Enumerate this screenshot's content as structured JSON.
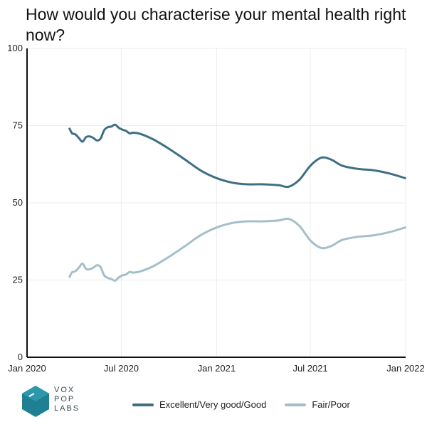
{
  "title": "How would you characterise your mental health right now?",
  "logo": {
    "lines": [
      "VOX",
      "POP",
      "LABS"
    ]
  },
  "chart_data": {
    "type": "line",
    "title": "How would you characterise your mental health right now?",
    "xlabel": "",
    "ylabel": "",
    "ylim": [
      0,
      100
    ],
    "yticks": [
      0,
      25,
      50,
      75,
      100
    ],
    "xlim": [
      "2020-01-01",
      "2022-01-01"
    ],
    "xticks": [
      {
        "label": "Jan 2020",
        "date": "2020-01-01"
      },
      {
        "label": "Jul 2020",
        "date": "2020-07-01"
      },
      {
        "label": "Jan 2021",
        "date": "2021-01-01"
      },
      {
        "label": "Jul 2021",
        "date": "2021-07-01"
      },
      {
        "label": "Jan 2022",
        "date": "2022-01-01"
      }
    ],
    "grid": true,
    "legend_position": "bottom",
    "series": [
      {
        "name": "Excellent/Very good/Good",
        "color": "#3d6f85",
        "points": [
          [
            "2020-03-23",
            74
          ],
          [
            "2020-03-28",
            72.5
          ],
          [
            "2020-04-03",
            72.2
          ],
          [
            "2020-04-10",
            71
          ],
          [
            "2020-04-17",
            69.8
          ],
          [
            "2020-04-24",
            71.3
          ],
          [
            "2020-05-01",
            71.5
          ],
          [
            "2020-05-08",
            71
          ],
          [
            "2020-05-15",
            70.2
          ],
          [
            "2020-05-22",
            70.8
          ],
          [
            "2020-05-29",
            73.5
          ],
          [
            "2020-06-05",
            74.5
          ],
          [
            "2020-06-12",
            74.7
          ],
          [
            "2020-06-19",
            75.3
          ],
          [
            "2020-06-26",
            74.3
          ],
          [
            "2020-07-03",
            73.7
          ],
          [
            "2020-07-10",
            73.3
          ],
          [
            "2020-07-17",
            72.5
          ],
          [
            "2020-07-24",
            72.7
          ],
          [
            "2020-08-07",
            72.3
          ],
          [
            "2020-09-01",
            70.5
          ],
          [
            "2020-10-01",
            67.5
          ],
          [
            "2020-11-01",
            64
          ],
          [
            "2020-12-01",
            60.5
          ],
          [
            "2021-01-01",
            58
          ],
          [
            "2021-02-01",
            56.5
          ],
          [
            "2021-03-01",
            56
          ],
          [
            "2021-04-01",
            56
          ],
          [
            "2021-05-01",
            55.7
          ],
          [
            "2021-05-20",
            55.2
          ],
          [
            "2021-06-10",
            57.5
          ],
          [
            "2021-07-01",
            62
          ],
          [
            "2021-07-22",
            64.6
          ],
          [
            "2021-08-10",
            64
          ],
          [
            "2021-09-01",
            62
          ],
          [
            "2021-10-01",
            61
          ],
          [
            "2021-11-01",
            60.5
          ],
          [
            "2021-12-01",
            59.5
          ],
          [
            "2021-12-31",
            58
          ]
        ]
      },
      {
        "name": "Fair/Poor",
        "color": "#a3bfca",
        "points": [
          [
            "2020-03-23",
            26
          ],
          [
            "2020-03-28",
            27.5
          ],
          [
            "2020-04-03",
            27.8
          ],
          [
            "2020-04-10",
            29
          ],
          [
            "2020-04-17",
            30.3
          ],
          [
            "2020-04-24",
            28.6
          ],
          [
            "2020-05-01",
            28.5
          ],
          [
            "2020-05-08",
            29
          ],
          [
            "2020-05-15",
            29.8
          ],
          [
            "2020-05-22",
            29.2
          ],
          [
            "2020-05-29",
            26.5
          ],
          [
            "2020-06-05",
            25.7
          ],
          [
            "2020-06-12",
            25.3
          ],
          [
            "2020-06-19",
            24.8
          ],
          [
            "2020-06-26",
            25.8
          ],
          [
            "2020-07-03",
            26.5
          ],
          [
            "2020-07-10",
            26.8
          ],
          [
            "2020-07-17",
            27.6
          ],
          [
            "2020-07-24",
            27.4
          ],
          [
            "2020-08-07",
            27.8
          ],
          [
            "2020-09-01",
            29.5
          ],
          [
            "2020-10-01",
            32.5
          ],
          [
            "2020-11-01",
            36
          ],
          [
            "2020-12-01",
            39.5
          ],
          [
            "2021-01-01",
            42
          ],
          [
            "2021-02-01",
            43.5
          ],
          [
            "2021-03-01",
            44
          ],
          [
            "2021-04-01",
            44
          ],
          [
            "2021-05-01",
            44.3
          ],
          [
            "2021-05-20",
            44.8
          ],
          [
            "2021-06-10",
            42.5
          ],
          [
            "2021-07-01",
            37.8
          ],
          [
            "2021-07-22",
            35.4
          ],
          [
            "2021-08-10",
            36
          ],
          [
            "2021-09-01",
            38
          ],
          [
            "2021-10-01",
            39
          ],
          [
            "2021-11-01",
            39.5
          ],
          [
            "2021-12-01",
            40.5
          ],
          [
            "2021-12-31",
            42
          ]
        ]
      }
    ]
  }
}
